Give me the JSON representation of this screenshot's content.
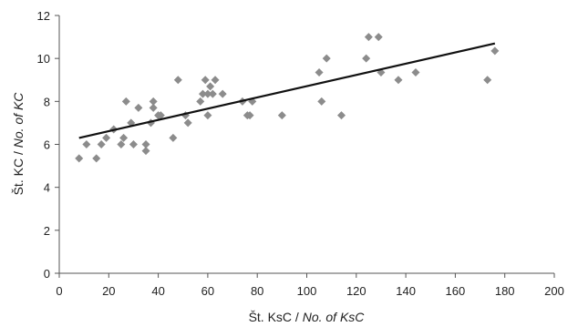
{
  "chart_data": {
    "type": "scatter",
    "xlabel": {
      "main": "Št. KsC / ",
      "italic": "No. of KsC"
    },
    "ylabel": {
      "main": "Št. KC / ",
      "italic": "No. of KC"
    },
    "xlim": [
      0,
      200
    ],
    "ylim": [
      0,
      12
    ],
    "x_ticks": [
      "0",
      "20",
      "40",
      "60",
      "80",
      "100",
      "120",
      "140",
      "160",
      "180",
      "200"
    ],
    "y_ticks": [
      "0",
      "2",
      "4",
      "6",
      "8",
      "10",
      "12"
    ],
    "grid": false,
    "legend": "none",
    "marker_color": "#8c8c8c",
    "trendline_color": "#111111",
    "points": [
      [
        8,
        5.35
      ],
      [
        11,
        6.0
      ],
      [
        15,
        5.35
      ],
      [
        17,
        6.0
      ],
      [
        19,
        6.3
      ],
      [
        22,
        6.7
      ],
      [
        25,
        6.0
      ],
      [
        26,
        6.3
      ],
      [
        27,
        8.0
      ],
      [
        29,
        7.0
      ],
      [
        30,
        6.0
      ],
      [
        32,
        7.7
      ],
      [
        35,
        5.7
      ],
      [
        35,
        6.0
      ],
      [
        37,
        7.0
      ],
      [
        38,
        7.7
      ],
      [
        38,
        8.0
      ],
      [
        40,
        7.35
      ],
      [
        41,
        7.35
      ],
      [
        46,
        6.3
      ],
      [
        48,
        9.0
      ],
      [
        51,
        7.35
      ],
      [
        52,
        7.0
      ],
      [
        57,
        8.0
      ],
      [
        58,
        8.35
      ],
      [
        59,
        9.0
      ],
      [
        60,
        8.35
      ],
      [
        60,
        7.35
      ],
      [
        61,
        8.7
      ],
      [
        62,
        8.35
      ],
      [
        63,
        9.0
      ],
      [
        66,
        8.35
      ],
      [
        74,
        8.0
      ],
      [
        76,
        7.35
      ],
      [
        77,
        7.35
      ],
      [
        78,
        8.0
      ],
      [
        90,
        7.35
      ],
      [
        105,
        9.35
      ],
      [
        106,
        8.0
      ],
      [
        108,
        10.0
      ],
      [
        114,
        7.35
      ],
      [
        124,
        10.0
      ],
      [
        125,
        11.0
      ],
      [
        129,
        11.0
      ],
      [
        130,
        9.35
      ],
      [
        137,
        9.0
      ],
      [
        144,
        9.35
      ],
      [
        173,
        9.0
      ],
      [
        176,
        10.35
      ]
    ],
    "trendline": {
      "x": [
        8,
        176
      ],
      "y": [
        6.3,
        10.7
      ]
    }
  }
}
